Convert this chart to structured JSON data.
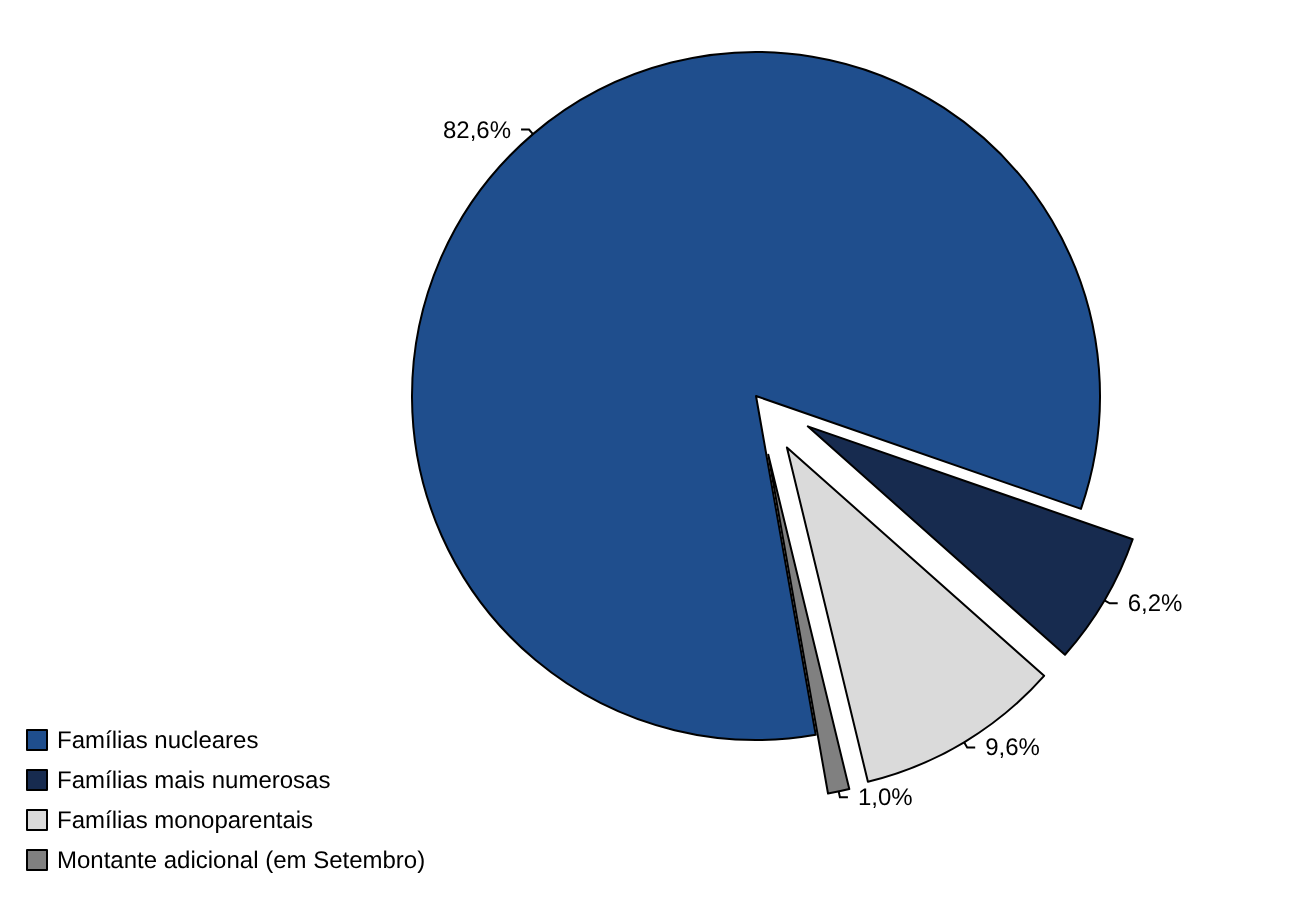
{
  "chart_data": {
    "type": "pie",
    "categories": [
      "Famílias nucleares",
      "Famílias mais numerosas",
      "Famílias monoparentais",
      "Montante adicional (em Setembro)"
    ],
    "values": [
      82.6,
      6.2,
      9.6,
      1.0
    ],
    "value_labels": [
      "82,6%",
      "6,2%",
      "9,6%",
      "1,0%"
    ],
    "colors": [
      "#1f4e8d",
      "#172b4f",
      "#dadada",
      "#808080"
    ],
    "legend": "bottom left"
  }
}
